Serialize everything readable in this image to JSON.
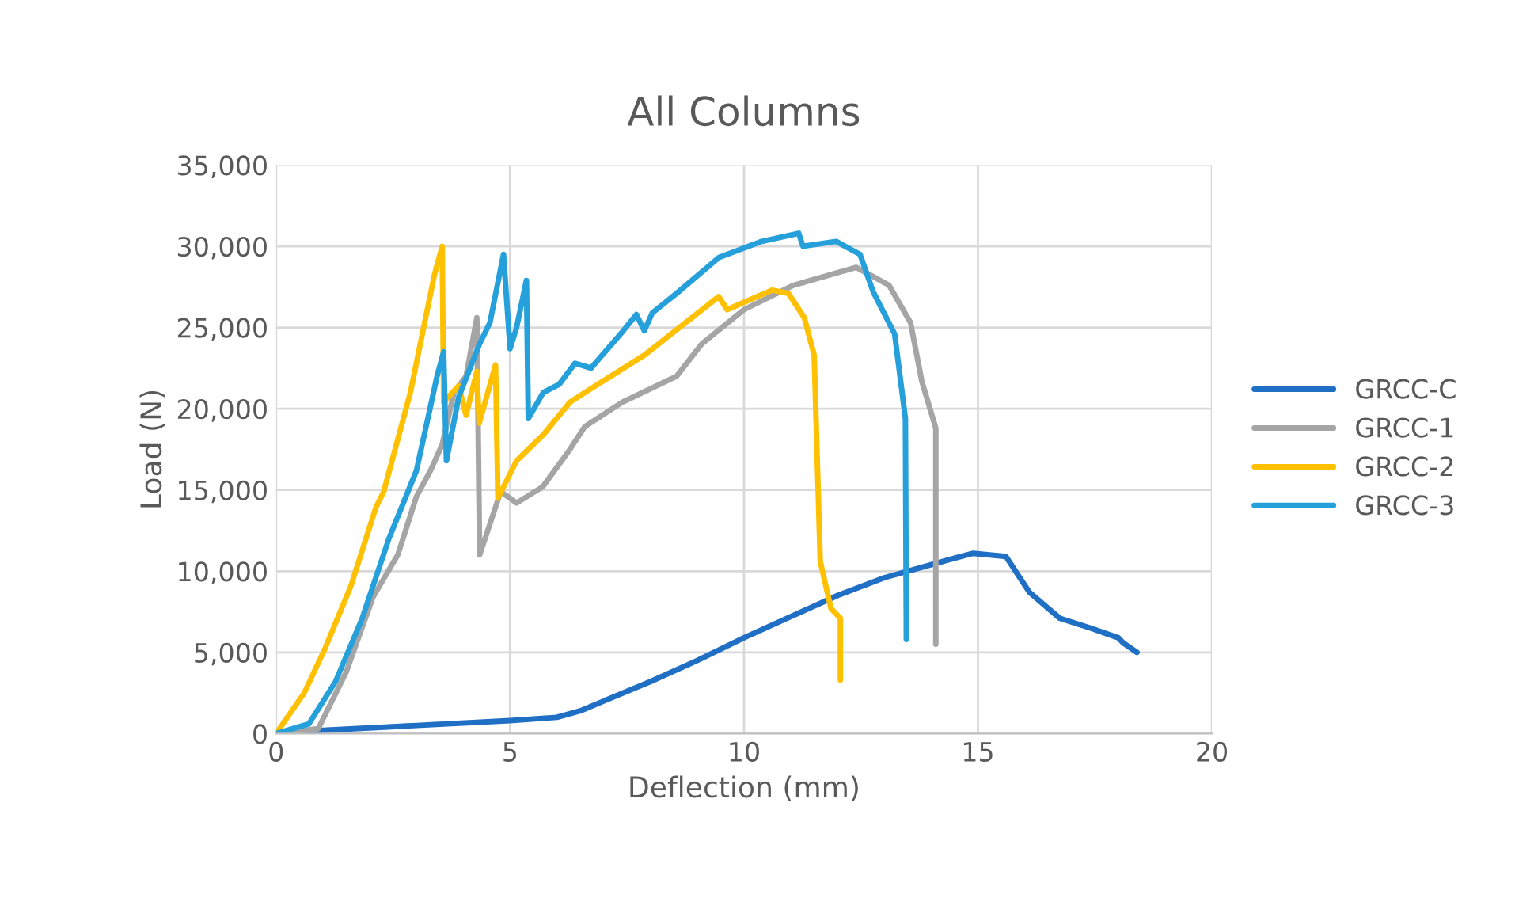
{
  "chart_data": {
    "type": "line",
    "title": "All Columns",
    "xlabel": "Deflection (mm)",
    "ylabel": "Load (N)",
    "xlim": [
      0,
      20
    ],
    "xticks": [
      0,
      5,
      10,
      15,
      20
    ],
    "ylim": [
      0,
      35000
    ],
    "yticks": [
      {
        "value": 0,
        "label": "0"
      },
      {
        "value": 5000,
        "label": "5,000"
      },
      {
        "value": 10000,
        "label": "10,000"
      },
      {
        "value": 15000,
        "label": "15,000"
      },
      {
        "value": 20000,
        "label": "20,000"
      },
      {
        "value": 25000,
        "label": "25,000"
      },
      {
        "value": 30000,
        "label": "30,000"
      },
      {
        "value": 35000,
        "label": "35,000"
      }
    ],
    "grid": true,
    "legend": "right",
    "marker": "none",
    "line_style": "solid",
    "series": [
      {
        "name": "GRCC-C",
        "color": "#1f6fc4",
        "x": [
          0,
          1,
          3,
          5,
          6,
          6.5,
          7,
          8,
          9,
          10,
          11,
          12,
          13,
          14,
          14.5,
          14.9,
          15.6,
          16.1,
          16.75,
          17.4,
          18.0,
          18.1,
          18.4
        ],
        "values": [
          0,
          200,
          500,
          800,
          1000,
          1400,
          2000,
          3200,
          4500,
          5900,
          7200,
          8500,
          9600,
          10400,
          10800,
          11100,
          10900,
          8700,
          7100,
          6500,
          5900,
          5600,
          5000
        ]
      },
      {
        "name": "GRCC-1",
        "color": "#a5a5a5",
        "x": [
          0,
          0.9,
          1.5,
          2.07,
          2.6,
          3.0,
          3.3,
          3.55,
          3.8,
          4.06,
          4.29,
          4.35,
          4.8,
          5.14,
          5.7,
          6.28,
          6.6,
          7.4,
          8.56,
          9.1,
          10.0,
          11.06,
          12.4,
          13.1,
          13.56,
          13.8,
          14.1,
          14.1
        ],
        "values": [
          0,
          300,
          3800,
          8400,
          11000,
          14600,
          16200,
          17800,
          21000,
          22000,
          25600,
          11000,
          14900,
          14200,
          15200,
          17500,
          18900,
          20400,
          22000,
          24000,
          26100,
          27600,
          28700,
          27600,
          25300,
          21700,
          18800,
          5500
        ]
      },
      {
        "name": "GRCC-2",
        "color": "#ffc000",
        "x": [
          0,
          0.6,
          1.04,
          1.6,
          2.13,
          2.3,
          2.87,
          3.38,
          3.55,
          3.58,
          3.9,
          4.06,
          4.29,
          4.34,
          4.69,
          4.74,
          5.14,
          5.71,
          6.28,
          6.6,
          7.87,
          9.46,
          9.64,
          10.6,
          10.95,
          11.29,
          11.5,
          11.63,
          11.86,
          12.06,
          12.06
        ],
        "values": [
          0,
          2500,
          5200,
          9100,
          13900,
          14900,
          21000,
          28200,
          30000,
          20400,
          21400,
          19600,
          22300,
          19100,
          22700,
          14500,
          16800,
          18400,
          20400,
          21000,
          23300,
          26900,
          26100,
          27300,
          27100,
          25600,
          23300,
          10600,
          7700,
          7100,
          3300
        ]
      },
      {
        "name": "GRCC-3",
        "color": "#25a0da",
        "x": [
          0,
          0.7,
          1.27,
          1.84,
          2.41,
          3.0,
          3.44,
          3.58,
          3.64,
          3.9,
          4.35,
          4.57,
          4.86,
          5.0,
          5.14,
          5.35,
          5.39,
          5.71,
          6.05,
          6.39,
          6.73,
          7.42,
          7.7,
          7.87,
          8.04,
          8.56,
          9.46,
          10.38,
          11.17,
          11.26,
          11.97,
          12.48,
          12.76,
          13.22,
          13.45,
          13.47
        ],
        "values": [
          0,
          600,
          3200,
          7100,
          12000,
          16200,
          22000,
          23500,
          16800,
          20700,
          24000,
          25300,
          29500,
          23700,
          25000,
          27900,
          19400,
          21000,
          21500,
          22800,
          22500,
          24800,
          25800,
          24800,
          25900,
          27100,
          29300,
          30300,
          30800,
          30000,
          30300,
          29500,
          27200,
          24600,
          19400,
          5800
        ]
      }
    ]
  }
}
